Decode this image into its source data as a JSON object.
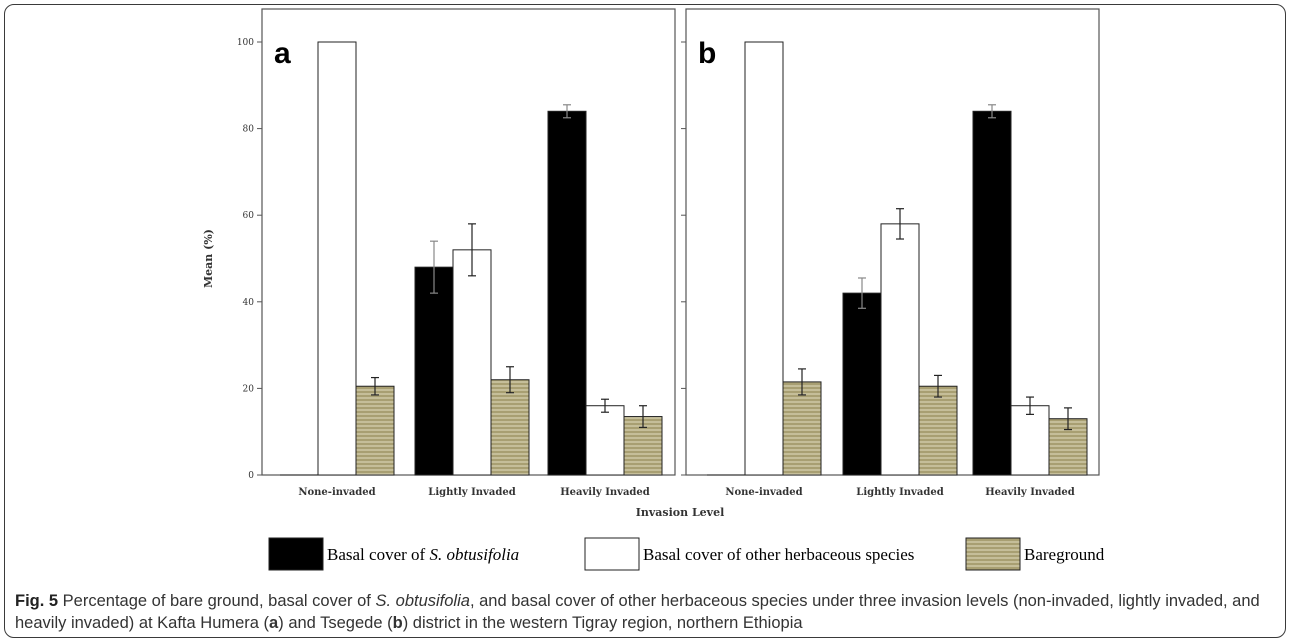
{
  "chart_data": [
    {
      "type": "bar",
      "panel_label": "a",
      "categories": [
        "None-invaded",
        "Lightly Invaded",
        "Heavily Invaded"
      ],
      "series": [
        {
          "name": "Basal cover of S. obtusifolia",
          "values": [
            0,
            48,
            84
          ],
          "errors": [
            0,
            6,
            1.5
          ],
          "color": "#000000"
        },
        {
          "name": "Basal cover of other herbaceous species",
          "values": [
            100,
            52,
            16
          ],
          "errors": [
            0,
            6,
            1.5
          ],
          "color": "#ffffff"
        },
        {
          "name": "Bareground",
          "values": [
            20.5,
            22,
            13.5
          ],
          "errors": [
            2,
            3,
            2.5
          ],
          "color": "#a89f72"
        }
      ],
      "ylim": [
        0,
        100
      ],
      "yticks": [
        0,
        20,
        40,
        60,
        80,
        100
      ],
      "ylabel": "Mean (%)",
      "xlabel": "Invasion Level"
    },
    {
      "type": "bar",
      "panel_label": "b",
      "categories": [
        "None-invaded",
        "Lightly Invaded",
        "Heavily Invaded"
      ],
      "series": [
        {
          "name": "Basal cover of S. obtusifolia",
          "values": [
            0,
            42,
            84
          ],
          "errors": [
            0,
            3.5,
            1.5
          ],
          "color": "#000000"
        },
        {
          "name": "Basal cover of other herbaceous species",
          "values": [
            100,
            58,
            16
          ],
          "errors": [
            0,
            3.5,
            2
          ],
          "color": "#ffffff"
        },
        {
          "name": "Bareground",
          "values": [
            21.5,
            20.5,
            13
          ],
          "errors": [
            3,
            2.5,
            2.5
          ],
          "color": "#a89f72"
        }
      ],
      "ylim": [
        0,
        100
      ],
      "yticks": [
        0,
        20,
        40,
        60,
        80,
        100
      ]
    }
  ],
  "legend": [
    {
      "prefix": "Basal cover of ",
      "italic": "S. obtusifolia",
      "swatch": "black"
    },
    {
      "prefix": "Basal cover of other herbaceous species",
      "italic": "",
      "swatch": "white"
    },
    {
      "prefix": "Bareground",
      "italic": "",
      "swatch": "hatched"
    }
  ],
  "caption": {
    "label": "Fig. 5",
    "t1": " Percentage of bare ground, basal cover of ",
    "i1": "S. obtusifolia",
    "t2": ", and basal cover of other herbaceous species under three invasion levels (non-invaded, lightly invaded, and heavily invaded) at Kafta Humera (",
    "b1": "a",
    "t3": ") and Tsegede (",
    "b2": "b",
    "t4": ") district in the western Tigray region, northern Ethiopia"
  },
  "colors": {
    "bareground": "#a89f72",
    "hatch": "#e2dcc0",
    "frame": "#555555"
  }
}
